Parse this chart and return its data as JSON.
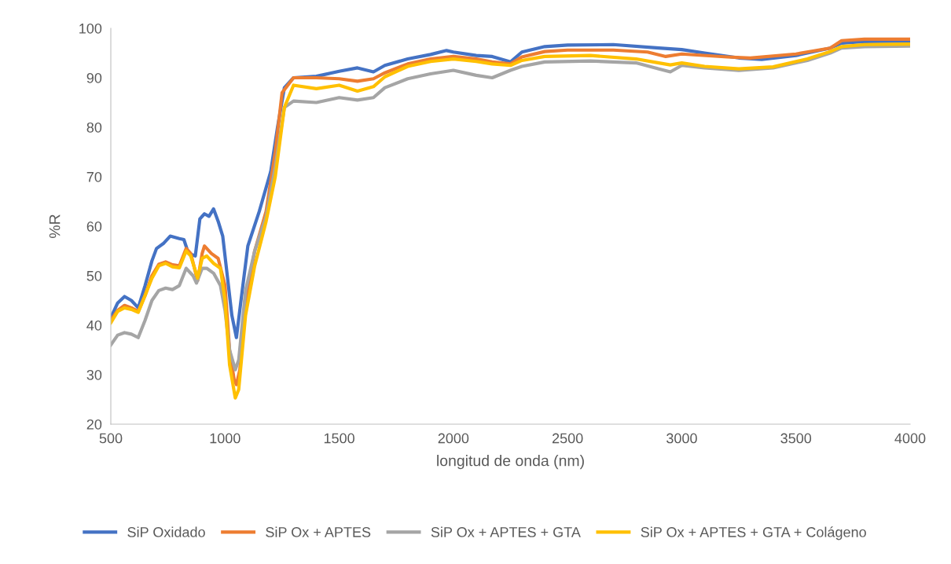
{
  "chart_data": {
    "type": "line",
    "xlabel": "longitud de onda (nm)",
    "ylabel": "%R",
    "xlim": [
      500,
      4000
    ],
    "xticks": [
      500,
      1000,
      1500,
      2000,
      2500,
      3000,
      3500,
      4000
    ],
    "ylim": [
      20,
      100
    ],
    "yticks": [
      20,
      30,
      40,
      50,
      60,
      70,
      80,
      90,
      100
    ],
    "grid": false,
    "legend": "bottom",
    "marker": "none",
    "line_style": "solid",
    "series": [
      {
        "name": "SiP Oxidado",
        "color": "#4472c4",
        "x": [
          500,
          530,
          560,
          590,
          620,
          650,
          680,
          700,
          730,
          760,
          800,
          820,
          840,
          870,
          890,
          910,
          930,
          950,
          970,
          990,
          1010,
          1030,
          1050,
          1070,
          1100,
          1150,
          1200,
          1230,
          1260,
          1300,
          1400,
          1500,
          1580,
          1650,
          1700,
          1800,
          1900,
          1970,
          2000,
          2100,
          2170,
          2250,
          2300,
          2400,
          2500,
          2700,
          2900,
          3000,
          3100,
          3250,
          3350,
          3500,
          3650,
          3700,
          3800,
          4000
        ],
        "values": [
          41.5,
          44.5,
          45.8,
          45,
          43.5,
          48,
          53,
          55.5,
          56.5,
          58,
          57.5,
          57.3,
          54.5,
          54,
          61.5,
          62.5,
          62,
          63.5,
          61,
          58,
          50,
          42,
          37.5,
          45,
          56,
          63,
          71,
          80,
          88,
          90,
          90.3,
          91.3,
          92,
          91.2,
          92.5,
          93.8,
          94.7,
          95.5,
          95.2,
          94.5,
          94.3,
          93.2,
          95.2,
          96.3,
          96.6,
          96.7,
          96,
          95.7,
          95,
          94,
          93.7,
          94.5,
          96,
          97,
          97.3,
          97.4
        ]
      },
      {
        "name": "SiP Ox + APTES",
        "color": "#ed7d31",
        "x": [
          500,
          530,
          560,
          590,
          620,
          650,
          680,
          710,
          740,
          770,
          800,
          830,
          850,
          880,
          900,
          910,
          940,
          970,
          1000,
          1020,
          1040,
          1050,
          1065,
          1090,
          1130,
          1180,
          1220,
          1250,
          1300,
          1400,
          1500,
          1580,
          1650,
          1700,
          1800,
          1900,
          2000,
          2100,
          2170,
          2250,
          2300,
          2400,
          2500,
          2700,
          2850,
          2930,
          3000,
          3200,
          3300,
          3500,
          3650,
          3700,
          3800,
          4000
        ],
        "values": [
          41,
          43,
          44,
          43.5,
          42.8,
          46,
          50,
          52.3,
          52.8,
          52.2,
          52,
          55.5,
          54.5,
          49,
          54.5,
          56,
          54.5,
          53.5,
          48,
          35,
          29,
          28,
          31,
          45,
          55,
          63,
          75,
          87,
          90,
          90,
          89.8,
          89.3,
          89.8,
          91,
          92.8,
          93.8,
          94.3,
          93.8,
          93.2,
          92.8,
          94.2,
          95.3,
          95.6,
          95.6,
          95.2,
          94.3,
          94.8,
          94.2,
          94,
          94.8,
          96,
          97.5,
          97.8,
          97.8
        ]
      },
      {
        "name": "SiP Ox + APTES + GTA",
        "color": "#a5a5a5",
        "x": [
          500,
          530,
          560,
          590,
          620,
          650,
          680,
          710,
          740,
          770,
          800,
          830,
          860,
          875,
          900,
          920,
          950,
          980,
          1000,
          1020,
          1045,
          1060,
          1090,
          1130,
          1180,
          1220,
          1260,
          1300,
          1400,
          1500,
          1580,
          1650,
          1700,
          1800,
          1900,
          2000,
          2100,
          2170,
          2250,
          2300,
          2400,
          2600,
          2800,
          2900,
          2950,
          3000,
          3100,
          3250,
          3400,
          3550,
          3650,
          3700,
          3800,
          4000
        ],
        "values": [
          36,
          38,
          38.5,
          38.2,
          37.5,
          41,
          45,
          47,
          47.5,
          47.2,
          48,
          51.5,
          50,
          48.5,
          51.5,
          51.5,
          50.5,
          48,
          43,
          35,
          31,
          33,
          47,
          55,
          62,
          72,
          84,
          85.3,
          85,
          86,
          85.5,
          86,
          88,
          89.8,
          90.8,
          91.5,
          90.5,
          90,
          91.5,
          92.3,
          93.2,
          93.4,
          93,
          91.8,
          91.2,
          92.5,
          92,
          91.5,
          92,
          93.5,
          95,
          96,
          96.3,
          96.4
        ]
      },
      {
        "name": "SiP Ox + APTES + GTA + Colágeno",
        "color": "#ffc000",
        "x": [
          500,
          530,
          560,
          590,
          620,
          650,
          680,
          710,
          740,
          770,
          800,
          830,
          850,
          880,
          900,
          920,
          950,
          980,
          1000,
          1020,
          1045,
          1060,
          1090,
          1130,
          1180,
          1220,
          1260,
          1300,
          1400,
          1500,
          1580,
          1650,
          1700,
          1800,
          1900,
          2000,
          2100,
          2170,
          2250,
          2300,
          2400,
          2600,
          2800,
          2900,
          2950,
          3000,
          3100,
          3250,
          3400,
          3550,
          3650,
          3700,
          3800,
          4000
        ],
        "values": [
          40.5,
          42.8,
          43.5,
          43.2,
          42.6,
          46,
          49.5,
          52,
          52.5,
          51.8,
          51.6,
          55,
          54,
          49.5,
          53.5,
          54,
          52.5,
          51.5,
          45,
          32,
          25.3,
          27,
          42,
          52,
          61,
          70,
          84,
          88.5,
          87.8,
          88.5,
          87.3,
          88.2,
          90.2,
          92.3,
          93.3,
          93.8,
          93.3,
          92.8,
          92.5,
          93.5,
          94.3,
          94.5,
          93.8,
          93,
          92.6,
          93,
          92.3,
          91.8,
          92.2,
          93.8,
          95.3,
          96.3,
          96.7,
          96.8
        ]
      }
    ]
  }
}
